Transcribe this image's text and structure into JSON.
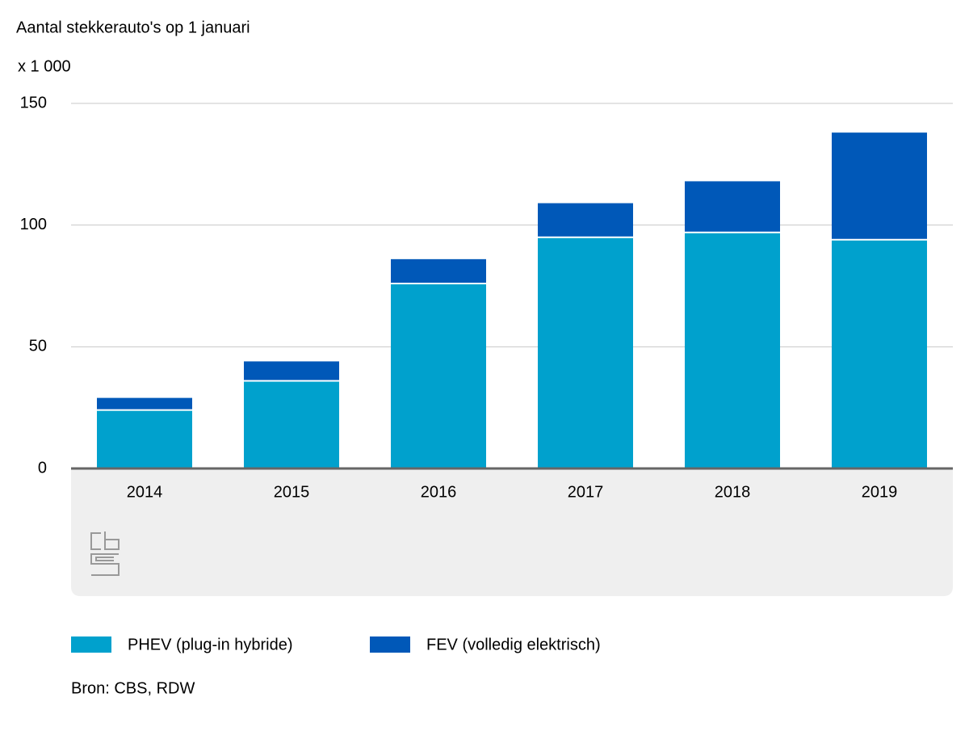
{
  "chart_data": {
    "type": "stacked-bar",
    "title": "Aantal stekkerauto's op 1 januari",
    "unit": "x 1 000",
    "categories": [
      "2014",
      "2015",
      "2016",
      "2017",
      "2018",
      "2019"
    ],
    "series": [
      {
        "name": "PHEV (plug-in hybride)",
        "color": "#00a1cd",
        "values": [
          24,
          36,
          76,
          95,
          97,
          94
        ]
      },
      {
        "name": "FEV (volledig elektrisch)",
        "color": "#0058b8",
        "values": [
          5,
          8,
          10,
          14,
          21,
          44
        ]
      }
    ],
    "ylim": [
      0,
      150
    ],
    "yticks": [
      0,
      50,
      100,
      150
    ],
    "grid": true,
    "source": "Bron: CBS, RDW"
  }
}
